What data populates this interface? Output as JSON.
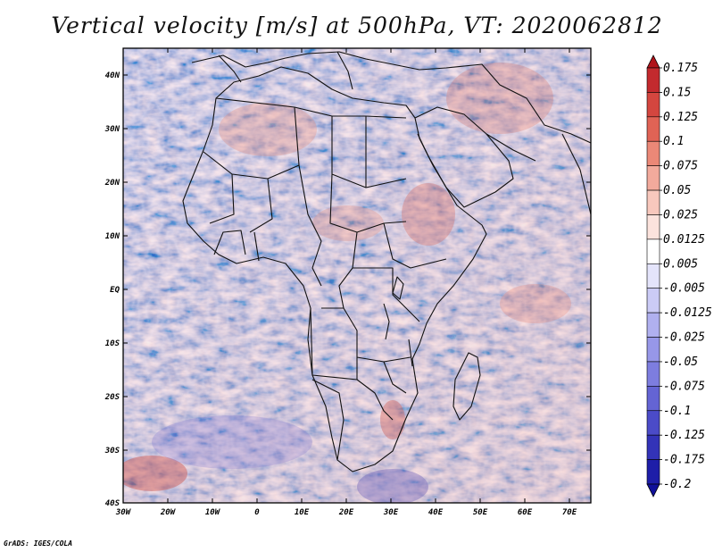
{
  "title": "Vertical velocity [m/s] at 500hPa, VT: 2020062812",
  "footer": "GrADS: IGES/COLA",
  "lon_ticks": [
    "30W",
    "20W",
    "10W",
    "0",
    "10E",
    "20E",
    "30E",
    "40E",
    "50E",
    "60E",
    "70E"
  ],
  "lat_ticks": [
    "40N",
    "30N",
    "20N",
    "10N",
    "EQ",
    "10S",
    "20S",
    "30S",
    "40S"
  ],
  "colorbar": {
    "levels": [
      "0.175",
      "0.15",
      "0.125",
      "0.1",
      "0.075",
      "0.05",
      "0.025",
      "0.0125",
      "0.005",
      "-0.005",
      "-0.0125",
      "-0.025",
      "-0.05",
      "-0.075",
      "-0.1",
      "-0.125",
      "-0.175",
      "-0.2"
    ],
    "colors": [
      "#b0131a",
      "#c32a2e",
      "#d4463f",
      "#e06355",
      "#eb8877",
      "#f2aa9c",
      "#f8c8bd",
      "#fce3dd",
      "#ffffff",
      "#e4e4fb",
      "#cbcbf6",
      "#b0b0ef",
      "#9797e8",
      "#7d7ddf",
      "#6464d4",
      "#4b4bc8",
      "#3333b8",
      "#1e1ea8",
      "#10109a"
    ]
  }
}
